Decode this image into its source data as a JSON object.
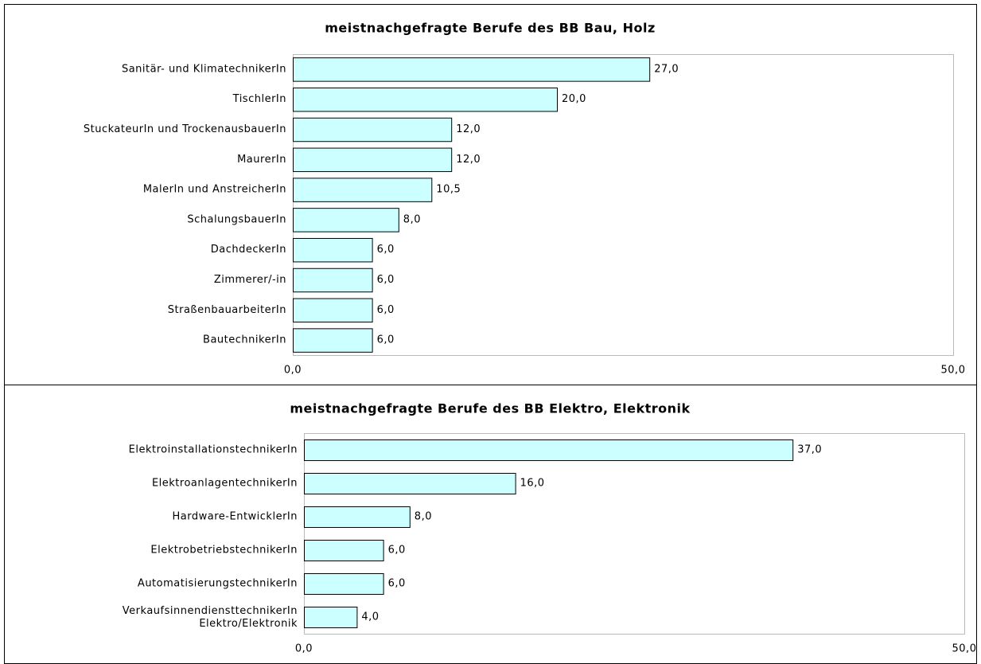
{
  "chart_data": [
    {
      "type": "bar",
      "orientation": "horizontal",
      "title": "meistnachgefragte Berufe des BB Bau, Holz",
      "categories": [
        "Sanitär- und KlimatechnikerIn",
        "TischlerIn",
        "StuckateurIn und TrockenausbauerIn",
        "MaurerIn",
        "MalerIn und AnstreicherIn",
        "SchalungsbauerIn",
        "DachdeckerIn",
        "Zimmerer/-in",
        "StraßenbauarbeiterIn",
        "BautechnikerIn"
      ],
      "values": [
        27,
        20,
        12,
        12,
        10.5,
        8,
        6,
        6,
        6,
        6
      ],
      "value_labels": [
        "27,0",
        "20,0",
        "12,0",
        "12,0",
        "10,5",
        "8,0",
        "6,0",
        "6,0",
        "6,0",
        "6,0"
      ],
      "color": "#ccffff",
      "xlim": [
        0,
        50
      ],
      "xticks": [
        {
          "value": 0,
          "label": "0,0"
        },
        {
          "value": 50,
          "label": "50,0"
        }
      ]
    },
    {
      "type": "bar",
      "orientation": "horizontal",
      "title": "meistnachgefragte Berufe des BB Elektro, Elektronik",
      "categories": [
        "ElektroinstallationstechnikerIn",
        "ElektroanlagentechnikerIn",
        "Hardware-EntwicklerIn",
        "ElektrobetriebstechnikerIn",
        "AutomatisierungstechnikerIn",
        "VerkaufsinnendiensttechnikerIn\nElektro/Elektronik"
      ],
      "values": [
        37,
        16,
        8,
        6,
        6,
        4
      ],
      "value_labels": [
        "37,0",
        "16,0",
        "8,0",
        "6,0",
        "6,0",
        "4,0"
      ],
      "color": "#ccffff",
      "xlim": [
        0,
        50
      ],
      "xticks": [
        {
          "value": 0,
          "label": "0,0"
        },
        {
          "value": 50,
          "label": "50,0"
        }
      ]
    }
  ]
}
